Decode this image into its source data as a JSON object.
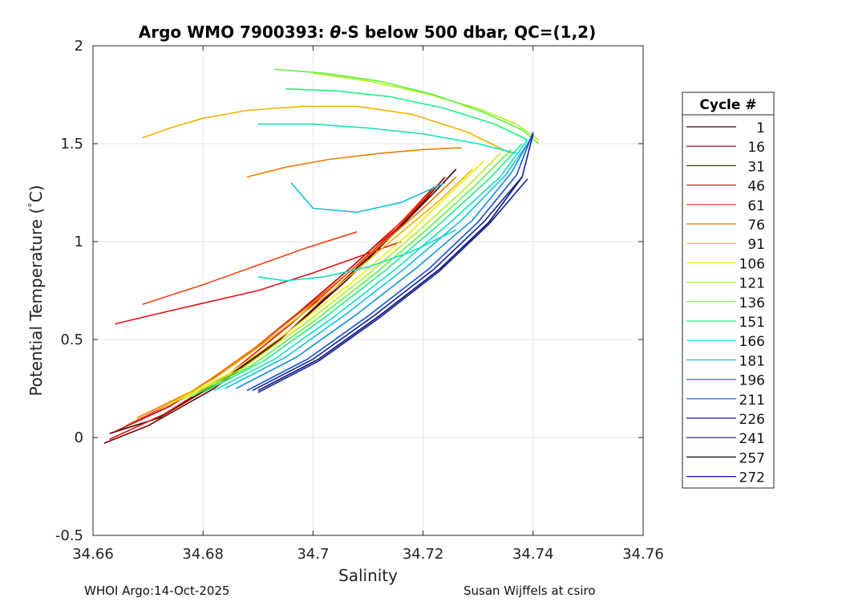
{
  "chart_data": {
    "type": "line",
    "title": "Argo WMO 7900393: θ-S below 500 dbar,  QC=(1,2)",
    "title_parts": {
      "pre": "Argo WMO 7900393: ",
      "theta": "θ",
      "post": "-S below 500 dbar,  QC=(1,2)"
    },
    "xlabel": "Salinity",
    "ylabel": "Potential Temperature (°C)",
    "ylabel_parts": {
      "pre": "Potential Temperature (",
      "deg": "°",
      "post": "C)"
    },
    "xlim": [
      34.66,
      34.76
    ],
    "ylim": [
      -0.5,
      2
    ],
    "xticks": [
      34.66,
      34.68,
      34.7,
      34.72,
      34.74,
      34.76
    ],
    "xtick_labels": [
      "34.66",
      "34.68",
      "34.7",
      "34.72",
      "34.74",
      "34.76"
    ],
    "yticks": [
      -0.5,
      0,
      0.5,
      1,
      1.5,
      2
    ],
    "ytick_labels": [
      "-0.5",
      "0",
      "0.5",
      "1",
      "1.5",
      "2"
    ],
    "grid": true,
    "legend": {
      "title": "Cycle #",
      "placement": "right outside",
      "entries": [
        {
          "label": "1",
          "color": "#3a0000"
        },
        {
          "label": "16",
          "color": "#7a0000"
        },
        {
          "label": "31",
          "color": "#b80000"
        },
        {
          "label": "46",
          "color": "#e01010"
        },
        {
          "label": "61",
          "color": "#f04010"
        },
        {
          "label": "76",
          "color": "#f07a00"
        },
        {
          "label": "91",
          "color": "#f0b000"
        },
        {
          "label": "106",
          "color": "#f0f000"
        },
        {
          "label": "121",
          "color": "#b0f020"
        },
        {
          "label": "136",
          "color": "#60f040"
        },
        {
          "label": "151",
          "color": "#20f080"
        },
        {
          "label": "166",
          "color": "#10e0c0"
        },
        {
          "label": "181",
          "color": "#10c0e0"
        },
        {
          "label": "196",
          "color": "#1090e0"
        },
        {
          "label": "211",
          "color": "#1050d0"
        },
        {
          "label": "226",
          "color": "#1020a0"
        },
        {
          "label": "241",
          "color": "#101060"
        },
        {
          "label": "257",
          "color": "#080830"
        },
        {
          "label": "272",
          "color": "#0820b0"
        }
      ]
    },
    "series": [
      {
        "color": "#3a0000",
        "x": [
          34.663,
          34.672,
          34.684,
          34.696,
          34.706,
          34.715,
          34.722,
          34.726
        ],
        "y": [
          0.02,
          0.1,
          0.3,
          0.55,
          0.8,
          1.05,
          1.25,
          1.37
        ]
      },
      {
        "color": "#7a0000",
        "x": [
          34.662,
          34.67,
          34.682,
          34.694,
          34.704,
          34.713,
          34.72,
          34.724
        ],
        "y": [
          -0.03,
          0.06,
          0.25,
          0.5,
          0.76,
          1.0,
          1.2,
          1.33
        ]
      },
      {
        "color": "#b80000",
        "x": [
          34.664,
          34.674,
          34.686,
          34.697,
          34.707,
          34.716,
          34.722
        ],
        "y": [
          0.03,
          0.16,
          0.38,
          0.63,
          0.87,
          1.1,
          1.28
        ]
      },
      {
        "color": "#e01010",
        "x": [
          34.663,
          34.673,
          34.685,
          34.696,
          34.706,
          34.715,
          34.721
        ],
        "y": [
          -0.01,
          0.12,
          0.33,
          0.58,
          0.83,
          1.06,
          1.24
        ]
      },
      {
        "color": "#e01010",
        "x": [
          34.664,
          34.676,
          34.69,
          34.7,
          34.708,
          34.716
        ],
        "y": [
          0.58,
          0.66,
          0.75,
          0.84,
          0.92,
          1.0
        ]
      },
      {
        "color": "#f04010",
        "x": [
          34.666,
          34.676,
          34.688,
          34.699,
          34.709,
          34.717,
          34.723
        ],
        "y": [
          0.06,
          0.2,
          0.42,
          0.67,
          0.9,
          1.13,
          1.3
        ]
      },
      {
        "color": "#f04010",
        "x": [
          34.669,
          34.68,
          34.69,
          34.699,
          34.708
        ],
        "y": [
          0.68,
          0.78,
          0.88,
          0.97,
          1.05
        ]
      },
      {
        "color": "#f07a00",
        "x": [
          34.668,
          34.679,
          34.69,
          34.701,
          34.711,
          34.72,
          34.726
        ],
        "y": [
          0.1,
          0.25,
          0.47,
          0.71,
          0.95,
          1.17,
          1.33
        ]
      },
      {
        "color": "#f07a00",
        "x": [
          34.688,
          34.695,
          34.703,
          34.712,
          34.72,
          34.727
        ],
        "y": [
          1.33,
          1.38,
          1.42,
          1.45,
          1.47,
          1.48
        ]
      },
      {
        "color": "#f0b000",
        "x": [
          34.669,
          34.674,
          34.68,
          34.688,
          34.698,
          34.708,
          34.718,
          34.728,
          34.736
        ],
        "y": [
          1.53,
          1.58,
          1.63,
          1.67,
          1.69,
          1.69,
          1.65,
          1.56,
          1.45
        ]
      },
      {
        "color": "#f0b000",
        "x": [
          34.672,
          34.682,
          34.693,
          34.704,
          34.714,
          34.723,
          34.729
        ],
        "y": [
          0.14,
          0.3,
          0.52,
          0.76,
          1.0,
          1.21,
          1.37
        ]
      },
      {
        "color": "#f0f000",
        "x": [
          34.674,
          34.685,
          34.696,
          34.707,
          34.717,
          34.725,
          34.731
        ],
        "y": [
          0.17,
          0.33,
          0.55,
          0.79,
          1.03,
          1.25,
          1.41
        ]
      },
      {
        "color": "#b0f020",
        "x": [
          34.676,
          34.687,
          34.698,
          34.709,
          34.719,
          34.728,
          34.734
        ],
        "y": [
          0.19,
          0.35,
          0.57,
          0.81,
          1.05,
          1.28,
          1.45
        ]
      },
      {
        "color": "#b0f020",
        "x": [
          34.7,
          34.71,
          34.72,
          34.73,
          34.737,
          34.741
        ],
        "y": [
          1.86,
          1.82,
          1.76,
          1.68,
          1.6,
          1.52
        ]
      },
      {
        "color": "#60f040",
        "x": [
          34.678,
          34.689,
          34.7,
          34.711,
          34.721,
          34.73,
          34.736
        ],
        "y": [
          0.21,
          0.37,
          0.59,
          0.83,
          1.07,
          1.3,
          1.47
        ]
      },
      {
        "color": "#60f040",
        "x": [
          34.693,
          34.702,
          34.712,
          34.722,
          34.731,
          34.738,
          34.741
        ],
        "y": [
          1.88,
          1.86,
          1.82,
          1.75,
          1.66,
          1.57,
          1.5
        ]
      },
      {
        "color": "#20f080",
        "x": [
          34.68,
          34.691,
          34.702,
          34.713,
          34.723,
          34.732,
          34.738
        ],
        "y": [
          0.23,
          0.39,
          0.61,
          0.85,
          1.09,
          1.32,
          1.5
        ]
      },
      {
        "color": "#20f080",
        "x": [
          34.695,
          34.704,
          34.714,
          34.724,
          34.733,
          34.739
        ],
        "y": [
          1.78,
          1.77,
          1.74,
          1.68,
          1.6,
          1.52
        ]
      },
      {
        "color": "#10e0c0",
        "x": [
          34.682,
          34.693,
          34.704,
          34.715,
          34.725,
          34.734,
          34.739
        ],
        "y": [
          0.24,
          0.4,
          0.62,
          0.86,
          1.1,
          1.33,
          1.52
        ]
      },
      {
        "color": "#10e0c0",
        "x": [
          34.69,
          34.7,
          34.71,
          34.72,
          34.73,
          34.737
        ],
        "y": [
          1.6,
          1.6,
          1.58,
          1.55,
          1.5,
          1.45
        ]
      },
      {
        "color": "#10e0c0",
        "x": [
          34.69,
          34.695,
          34.702,
          34.71,
          34.718,
          34.726
        ],
        "y": [
          0.82,
          0.8,
          0.82,
          0.87,
          0.95,
          1.06
        ]
      },
      {
        "color": "#10c0e0",
        "x": [
          34.684,
          34.695,
          34.706,
          34.717,
          34.727,
          34.735,
          34.74
        ],
        "y": [
          0.25,
          0.41,
          0.63,
          0.87,
          1.11,
          1.34,
          1.54
        ]
      },
      {
        "color": "#10c0e0",
        "x": [
          34.696,
          34.7,
          34.708,
          34.716,
          34.724
        ],
        "y": [
          1.3,
          1.17,
          1.15,
          1.2,
          1.3
        ]
      },
      {
        "color": "#1090e0",
        "x": [
          34.686,
          34.697,
          34.708,
          34.719,
          34.729,
          34.736,
          34.74
        ],
        "y": [
          0.25,
          0.41,
          0.63,
          0.87,
          1.11,
          1.35,
          1.55
        ]
      },
      {
        "color": "#1050d0",
        "x": [
          34.688,
          34.699,
          34.71,
          34.721,
          34.73,
          34.737,
          34.74
        ],
        "y": [
          0.24,
          0.4,
          0.62,
          0.86,
          1.1,
          1.34,
          1.56
        ]
      },
      {
        "color": "#1020a0",
        "x": [
          34.689,
          34.7,
          34.711,
          34.722,
          34.731,
          34.738,
          34.74
        ],
        "y": [
          0.24,
          0.4,
          0.62,
          0.86,
          1.1,
          1.33,
          1.55
        ]
      },
      {
        "color": "#101060",
        "x": [
          34.69,
          34.701,
          34.712,
          34.723,
          34.732,
          34.738
        ],
        "y": [
          0.24,
          0.4,
          0.62,
          0.86,
          1.1,
          1.33
        ]
      },
      {
        "color": "#0820b0",
        "x": [
          34.69,
          34.701,
          34.712,
          34.723,
          34.732,
          34.739
        ],
        "y": [
          0.23,
          0.39,
          0.61,
          0.85,
          1.09,
          1.32
        ]
      }
    ]
  },
  "footer": {
    "left": "WHOI Argo:14-Oct-2025",
    "right": "Susan Wijffels at csiro"
  }
}
